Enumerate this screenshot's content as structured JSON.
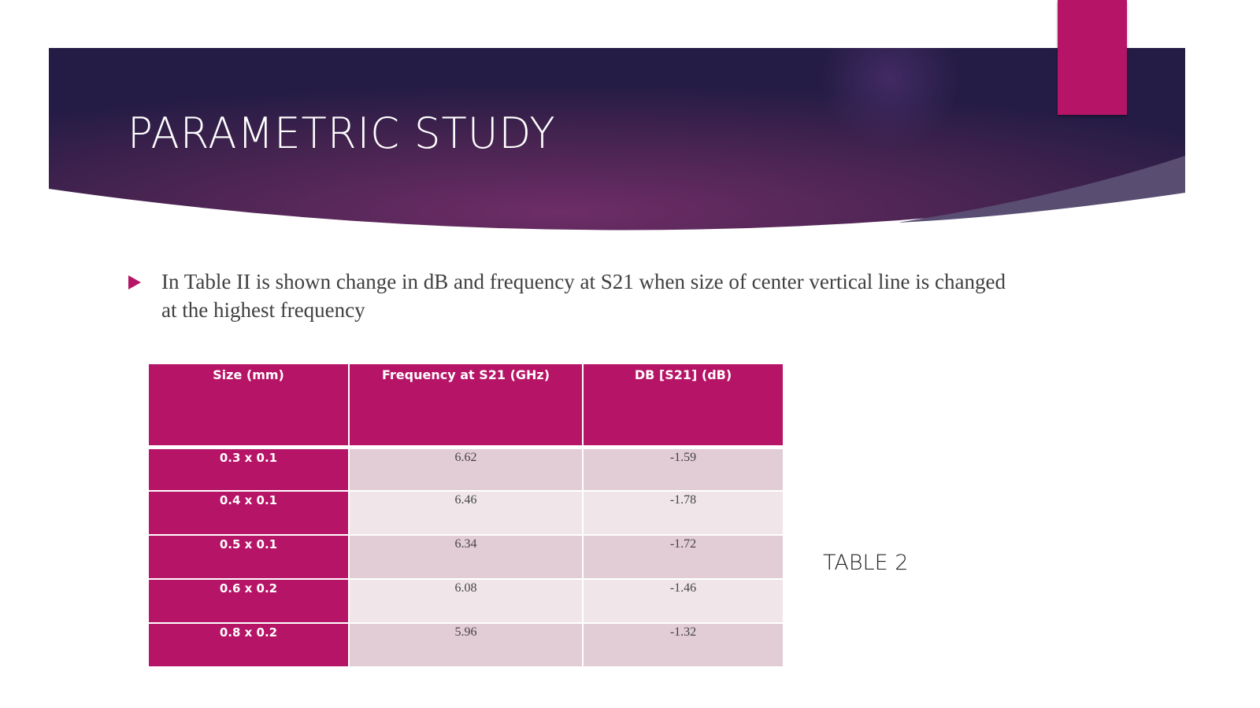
{
  "slide": {
    "title": "PARAMETRIC STUDY",
    "bullet_text": "In Table II  is shown change in dB and frequency at S21 when size of center vertical line is changed at the highest frequency",
    "table_label": "TABLE 2",
    "colors": {
      "accent": "#b61466",
      "banner_dark": "#2a1f4a",
      "banner_mid": "#6a2c64"
    }
  },
  "table": {
    "headers": [
      "Size (mm)",
      "Frequency at S21 (GHz)",
      "DB  [S21]  (dB)"
    ],
    "rows": [
      [
        "0.3 x 0.1",
        "6.62",
        "-1.59"
      ],
      [
        "0.4 x 0.1",
        "6.46",
        "-1.78"
      ],
      [
        "0.5 x 0.1",
        "6.34",
        "-1.72"
      ],
      [
        "0.6 x 0.2",
        "6.08",
        "-1.46"
      ],
      [
        "0.8 x 0.2",
        "5.96",
        "-1.32"
      ]
    ]
  }
}
